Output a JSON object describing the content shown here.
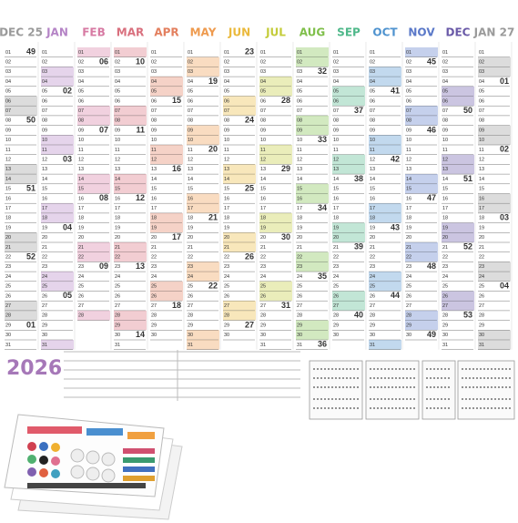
{
  "year": "2026",
  "day_labels": [
    "01",
    "02",
    "03",
    "04",
    "05",
    "06",
    "07",
    "08",
    "09",
    "10",
    "11",
    "12",
    "13",
    "14",
    "15",
    "16",
    "17",
    "18",
    "19",
    "20",
    "21",
    "22",
    "23",
    "24",
    "25",
    "26",
    "27",
    "28",
    "29",
    "30",
    "31"
  ],
  "months": [
    {
      "name": "DEC 25",
      "color": "#9a9a9a",
      "length": 31,
      "first_weekday": 1,
      "weeks": [
        "49",
        "50",
        "51",
        "52",
        "01"
      ]
    },
    {
      "name": "JAN",
      "color": "#b584c6",
      "length": 31,
      "first_weekday": 4,
      "weeks": [
        "02",
        "03",
        "04",
        "05"
      ]
    },
    {
      "name": "FEB",
      "color": "#d77aa3",
      "length": 28,
      "first_weekday": 0,
      "weeks": [
        "06",
        "07",
        "08",
        "09"
      ]
    },
    {
      "name": "MAR",
      "color": "#d9707e",
      "length": 31,
      "first_weekday": 0,
      "weeks": [
        "10",
        "11",
        "12",
        "13",
        "14"
      ]
    },
    {
      "name": "APR",
      "color": "#e37f5e",
      "length": 30,
      "first_weekday": 3,
      "weeks": [
        "15",
        "16",
        "17",
        "18"
      ]
    },
    {
      "name": "MAY",
      "color": "#ee9a4e",
      "length": 31,
      "first_weekday": 5,
      "weeks": [
        "19",
        "20",
        "21",
        "22"
      ]
    },
    {
      "name": "JUN",
      "color": "#eab93c",
      "length": 30,
      "first_weekday": 1,
      "weeks": [
        "23",
        "24",
        "25",
        "26",
        "27"
      ]
    },
    {
      "name": "JUL",
      "color": "#c4cc3a",
      "length": 31,
      "first_weekday": 3,
      "weeks": [
        "28",
        "29",
        "30",
        "31"
      ]
    },
    {
      "name": "AUG",
      "color": "#7fbf4a",
      "length": 31,
      "first_weekday": 6,
      "weeks": [
        "32",
        "33",
        "34",
        "35",
        "36"
      ]
    },
    {
      "name": "SEP",
      "color": "#4fb88a",
      "length": 30,
      "first_weekday": 2,
      "weeks": [
        "37",
        "38",
        "39",
        "40"
      ]
    },
    {
      "name": "OCT",
      "color": "#4f93cf",
      "length": 31,
      "first_weekday": 4,
      "weeks": [
        "41",
        "42",
        "43",
        "44"
      ]
    },
    {
      "name": "NOV",
      "color": "#5a78c8",
      "length": 30,
      "first_weekday": 0,
      "weeks": [
        "45",
        "46",
        "47",
        "48",
        "49"
      ]
    },
    {
      "name": "DEC",
      "color": "#6a5aa8",
      "length": 31,
      "first_weekday": 2,
      "weeks": [
        "50",
        "51",
        "52",
        "53"
      ]
    },
    {
      "name": "JAN 27",
      "color": "#9a9a9a",
      "length": 31,
      "first_weekday": 5,
      "weeks": [
        "01",
        "02",
        "03",
        "04"
      ]
    }
  ]
}
